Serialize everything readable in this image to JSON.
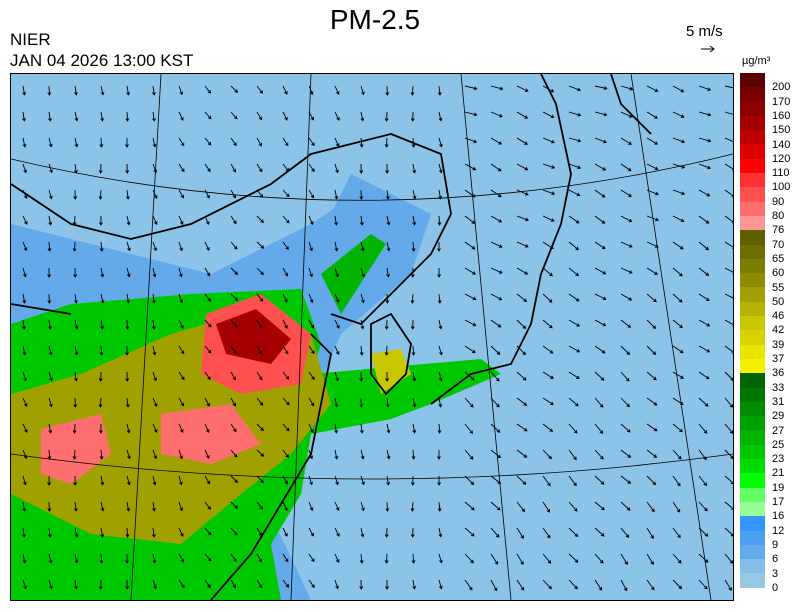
{
  "header": {
    "title": "PM-2.5",
    "organization": "NIER",
    "datetime": "JAN 04 2026 13:00 KST"
  },
  "wind_reference": {
    "label": "5 m/s",
    "icon": "arrow-right-icon"
  },
  "legend": {
    "unit": "µg/m³",
    "labels": [
      "200",
      "170",
      "160",
      "150",
      "140",
      "120",
      "110",
      "100",
      "90",
      "80",
      "76",
      "70",
      "65",
      "60",
      "55",
      "50",
      "46",
      "42",
      "39",
      "37",
      "36",
      "33",
      "31",
      "29",
      "27",
      "25",
      "23",
      "21",
      "19",
      "17",
      "16",
      "12",
      "9",
      "6",
      "3",
      "0"
    ],
    "colors": [
      "#5a0000",
      "#780000",
      "#8c0000",
      "#a50000",
      "#be0000",
      "#dc0000",
      "#ff0000",
      "#ff3232",
      "#ff5050",
      "#ff6e6e",
      "#ff9696",
      "#5f5f00",
      "#6e6e00",
      "#7d7d00",
      "#8c8c00",
      "#a0a000",
      "#b4b400",
      "#c8c800",
      "#d7d200",
      "#e6e600",
      "#f5f000",
      "#006400",
      "#007800",
      "#008c00",
      "#00a000",
      "#00b400",
      "#00c800",
      "#00dc00",
      "#00ff00",
      "#64ff64",
      "#96ff96",
      "#3296ff",
      "#4ba0f0",
      "#64aaeb",
      "#82bee6",
      "#96c8e6"
    ]
  },
  "map": {
    "background": "#8cc3e8",
    "overlay": "wind-vectors",
    "region": "East Asia"
  }
}
